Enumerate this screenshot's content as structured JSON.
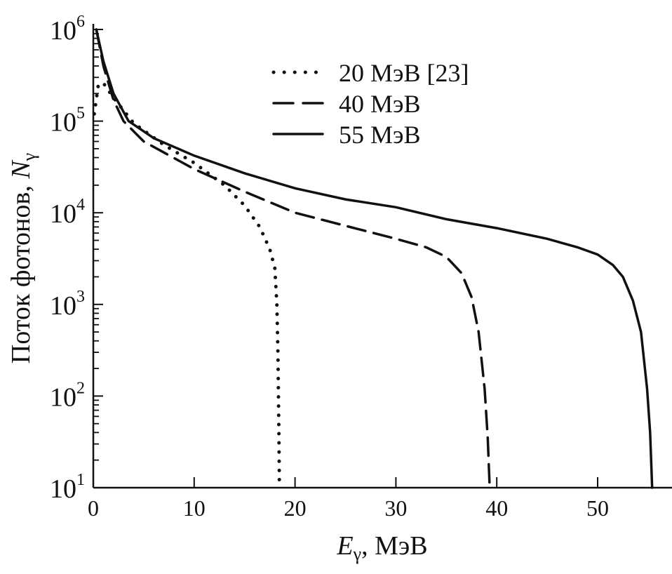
{
  "chart_data": {
    "type": "line",
    "title": "",
    "xlabel": "E",
    "xlabel_sub": "γ",
    "xlabel_unit": ", МэВ",
    "ylabel": "Поток фотонов, ",
    "ylabel_var": "N",
    "ylabel_sub": "γ",
    "xlim": [
      0,
      57
    ],
    "ylim": [
      10,
      1000000
    ],
    "yscale": "log",
    "x_ticks": [
      "0",
      "10",
      "20",
      "30",
      "40",
      "50"
    ],
    "y_ticks": [
      {
        "base": "10",
        "exp": "1"
      },
      {
        "base": "10",
        "exp": "2"
      },
      {
        "base": "10",
        "exp": "3"
      },
      {
        "base": "10",
        "exp": "4"
      },
      {
        "base": "10",
        "exp": "5"
      },
      {
        "base": "10",
        "exp": "6"
      }
    ],
    "legend_position": "top-center",
    "grid": false,
    "color": "#111111",
    "series": [
      {
        "name": "20 МэВ [23]",
        "style": "dotted",
        "x": [
          0.1,
          0.5,
          1,
          2,
          4,
          7,
          10,
          13,
          15,
          16.5,
          17.5,
          18,
          18.2,
          18.3,
          18.4,
          18.45
        ],
        "y": [
          120000,
          250000,
          260000,
          180000,
          95000,
          55000,
          35000,
          20000,
          12000,
          7000,
          4000,
          2500,
          1000,
          300,
          40,
          10
        ]
      },
      {
        "name": "40 МэВ",
        "style": "dashed",
        "x": [
          0.3,
          1,
          2,
          3,
          5,
          10,
          15,
          20,
          25,
          30,
          33,
          35,
          36.5,
          37.5,
          38.2,
          38.8,
          39.1,
          39.3
        ],
        "y": [
          1000000,
          400000,
          170000,
          100000,
          60000,
          30000,
          17000,
          10000,
          7200,
          5200,
          4200,
          3300,
          2200,
          1200,
          500,
          120,
          35,
          10
        ]
      },
      {
        "name": "55 МэВ",
        "style": "solid",
        "x": [
          0.3,
          1,
          2,
          3.5,
          6,
          10,
          15,
          20,
          25,
          30,
          35,
          40,
          45,
          48,
          50,
          51.5,
          52.5,
          53.5,
          54.3,
          54.9,
          55.2,
          55.4
        ],
        "y": [
          1000000,
          450000,
          200000,
          100000,
          65000,
          42000,
          27000,
          18500,
          14000,
          11500,
          8500,
          6800,
          5200,
          4200,
          3500,
          2700,
          2000,
          1100,
          500,
          120,
          40,
          10
        ]
      }
    ]
  }
}
